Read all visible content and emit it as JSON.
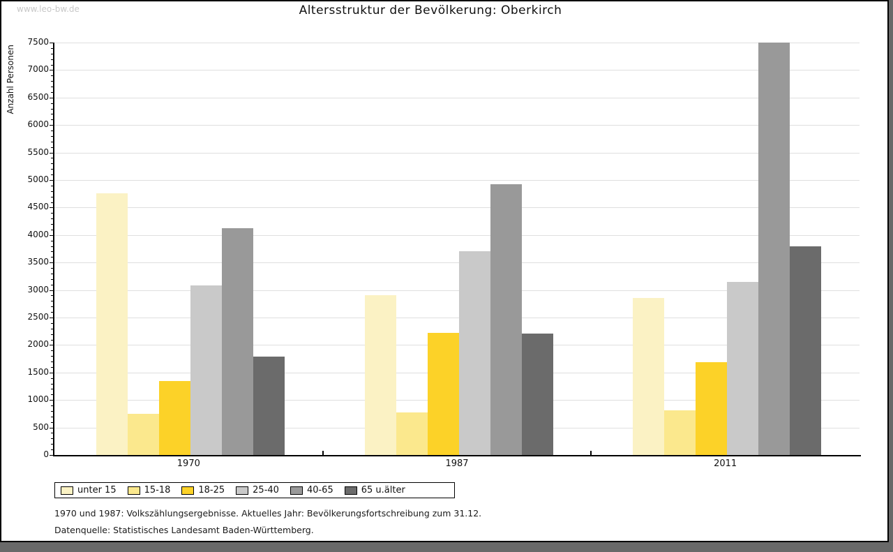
{
  "window": {
    "watermark": "www.leo-bw.de"
  },
  "title": "Altersstruktur der Bevölkerung: Oberkirch",
  "chart_data": {
    "type": "bar",
    "title": "Altersstruktur der Bevölkerung: Oberkirch",
    "xlabel": "",
    "ylabel": "Anzahl Personen",
    "ylim": [
      0,
      7500
    ],
    "ytick_step": 500,
    "ytick_minor_step": 100,
    "grid": "horizontal gridlines at every 500",
    "legend_position": "bottom-left boxed",
    "categories": [
      "1970",
      "1987",
      "2011"
    ],
    "series": [
      {
        "name": "unter 15",
        "color": "#FBF2C4",
        "values": [
          4760,
          2910,
          2860
        ]
      },
      {
        "name": "15-18",
        "color": "#FBE88D",
        "values": [
          750,
          770,
          810
        ]
      },
      {
        "name": "18-25",
        "color": "#FCD228",
        "values": [
          1350,
          2220,
          1690
        ]
      },
      {
        "name": "25-40",
        "color": "#C9C9C9",
        "values": [
          3080,
          3700,
          3150
        ]
      },
      {
        "name": "40-65",
        "color": "#999999",
        "values": [
          4120,
          4930,
          7500
        ]
      },
      {
        "name": "65 u.älter",
        "color": "#6B6B6B",
        "values": [
          1790,
          2210,
          3800
        ]
      }
    ]
  },
  "footnotes": [
    "1970 und 1987: Volkszählungsergebnisse. Aktuelles Jahr: Bevölkerungsfortschreibung zum 31.12.",
    "Datenquelle: Statistisches Landesamt Baden-Württemberg."
  ]
}
